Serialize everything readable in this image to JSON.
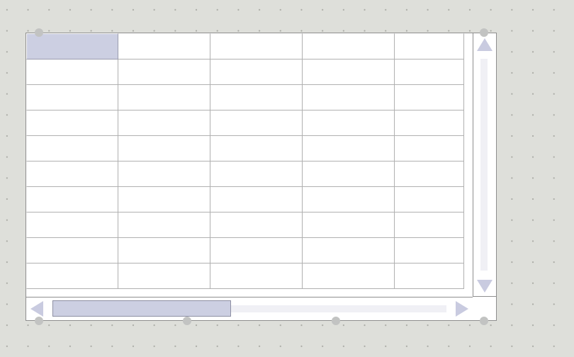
{
  "colors": {
    "background": "#dedfda",
    "grid_line": "#b0b0b0",
    "frame_border": "#8e8e8e",
    "selection": "#cccfe2",
    "scroll_arrow": "#c9cbe0",
    "scroll_track": "#f0f0f5",
    "handle": "#c2c3c2"
  },
  "grid": {
    "rows": [
      [
        "",
        "",
        "",
        "",
        ""
      ],
      [
        "",
        "",
        "",
        "",
        ""
      ],
      [
        "",
        "",
        "",
        "",
        ""
      ],
      [
        "",
        "",
        "",
        "",
        ""
      ],
      [
        "",
        "",
        "",
        "",
        ""
      ],
      [
        "",
        "",
        "",
        "",
        ""
      ],
      [
        "",
        "",
        "",
        "",
        ""
      ],
      [
        "",
        "",
        "",
        "",
        ""
      ],
      [
        "",
        "",
        "",
        "",
        ""
      ],
      [
        "",
        "",
        "",
        "",
        ""
      ]
    ],
    "selected_cell": {
      "row": 0,
      "col": 0
    }
  },
  "scrollbars": {
    "vertical": {
      "up_icon": "triangle-up-icon",
      "down_icon": "triangle-down-icon",
      "position": 0.0
    },
    "horizontal": {
      "left_icon": "triangle-left-icon",
      "right_icon": "triangle-right-icon",
      "position": 0.0,
      "visible_fraction": 0.45
    }
  }
}
